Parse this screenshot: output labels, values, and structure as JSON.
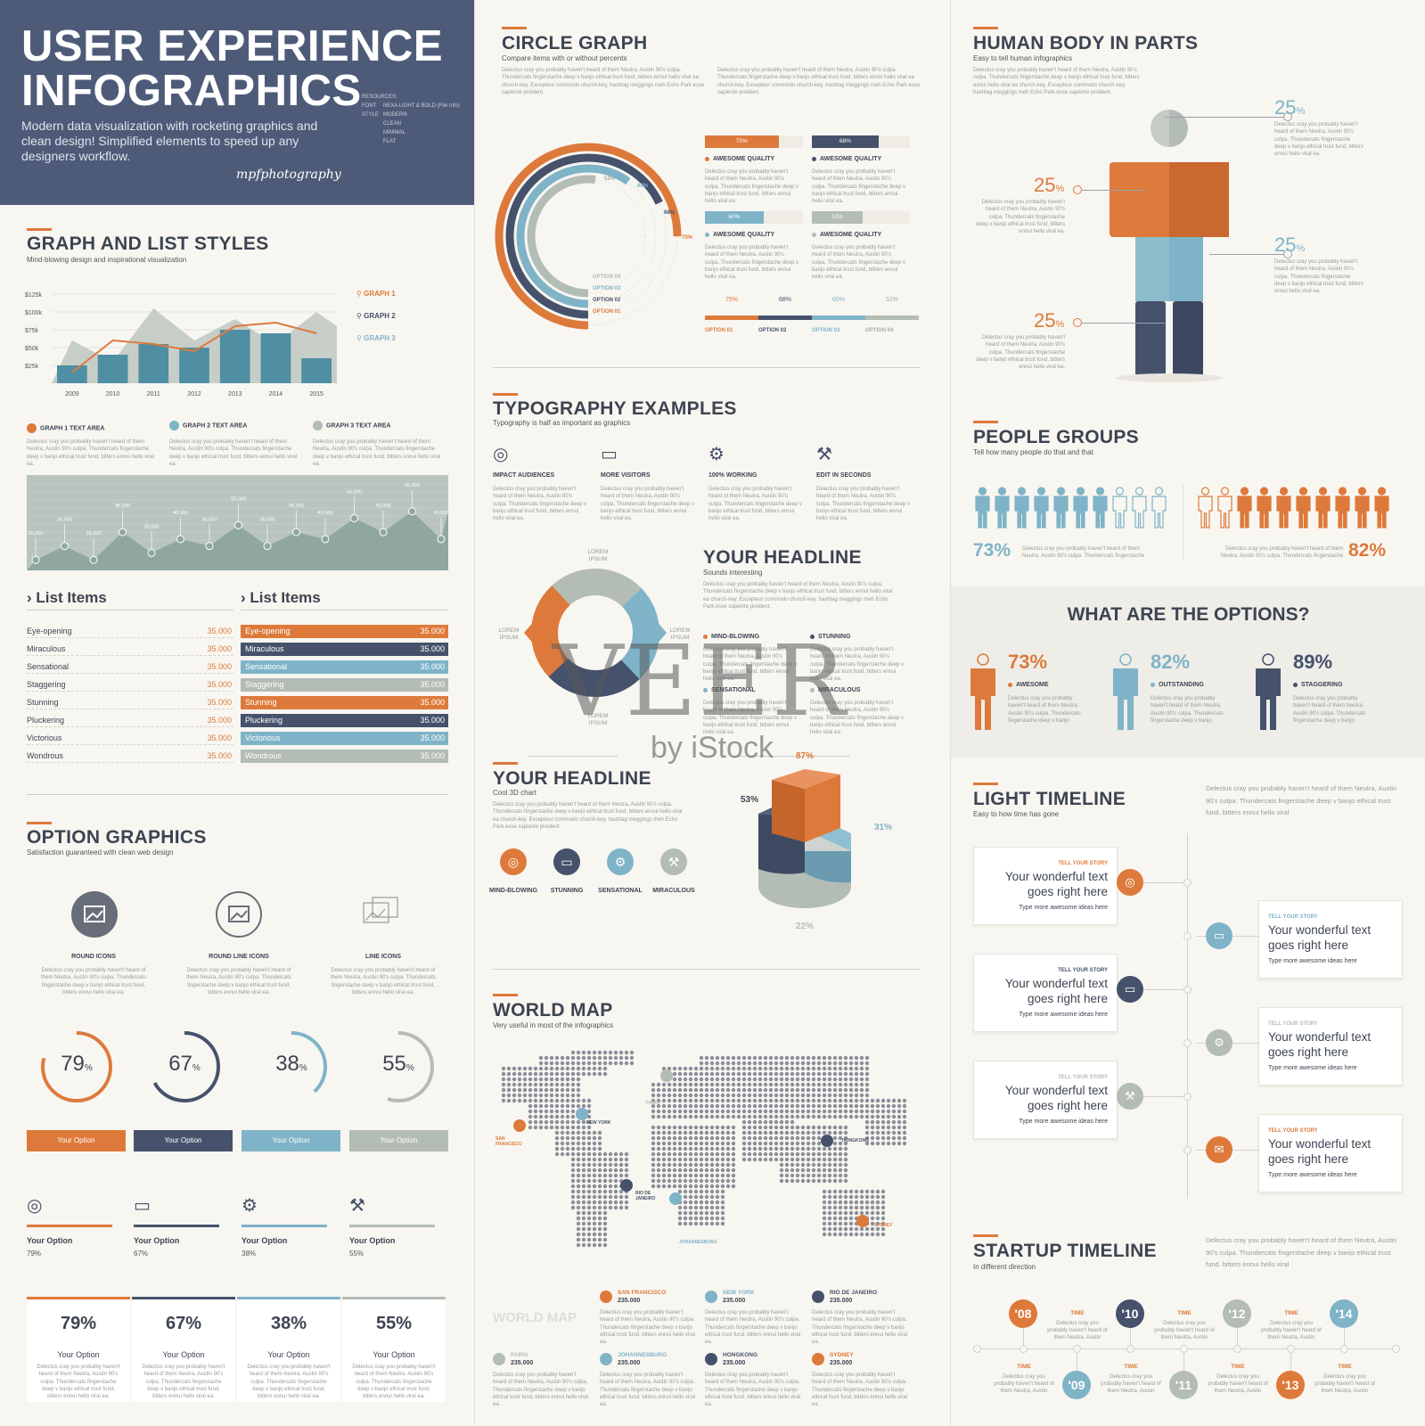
{
  "header": {
    "title_line1": "USER EXPERIENCE",
    "title_line2": "INFOGRAPHICS",
    "description": "Modern data visualization with rocketing graphics and clean design! Simplified elements to speed up any designers workflow.",
    "signature": "mpfphotography",
    "resources_label": "RESOURCES:",
    "resources": [
      "NEXA LIGHT & BOLD (File Info)",
      "MODERN",
      "CLEAN",
      "MINIMAL",
      "FLAT"
    ],
    "resource_keys": [
      "FONT",
      "STYLE"
    ]
  },
  "lorem": "Delectus cray you probably haven't heard of them Neutra, Austin 90's culpa. Thundercats fingerstache deep v banjo ethical trust fund, bitters ennui hello viral ea.",
  "lorem_long": "Delectus cray you probably haven't heard of them Neutra, Austin 90's culpa. Thundercats fingerstache deep v banjo ethical trust fund, bitters ennui hello viral ea church-key. Excepteur commodo church-key, hashtag meggings meh Echo Park esse sapiente proident.",
  "graph_section": {
    "title": "GRAPH AND LIST STYLES",
    "subtitle": "Mind-blowing design and inspirational visualization",
    "legend": [
      "GRAPH 1",
      "GRAPH 2",
      "GRAPH 3"
    ],
    "text_areas": [
      "GRAPH 1 TEXT AREA",
      "GRAPH 2 TEXT AREA",
      "GRAPH 3 TEXT AREA"
    ]
  },
  "chart_data": [
    {
      "type": "bar",
      "categories": [
        "2009",
        "2010",
        "2011",
        "2012",
        "2013",
        "2014",
        "2015"
      ],
      "y_ticks": [
        "$125k",
        "$100k",
        "$75k",
        "$50k",
        "$25k"
      ],
      "ylim": [
        0,
        125
      ],
      "series": [
        {
          "name": "GRAPH 3",
          "values": [
            25,
            40,
            55,
            50,
            75,
            70,
            35
          ]
        },
        {
          "name": "GRAPH 1",
          "values": [
            15,
            60,
            55,
            45,
            80,
            85,
            70
          ]
        },
        {
          "name": "GRAPH 2",
          "values": [
            60,
            30,
            105,
            60,
            90,
            55,
            100
          ]
        }
      ]
    },
    {
      "type": "line",
      "values": [
        25000,
        35000,
        25000,
        45000,
        30000,
        40000,
        35000,
        50000,
        35000,
        45000,
        40000,
        55000,
        45000,
        60000,
        40000
      ],
      "labels": [
        "25,000",
        "35,000",
        "25,000",
        "45,000",
        "30,000",
        "40,000",
        "35,000",
        "50,000",
        "35,000",
        "45,000",
        "40,000",
        "55,000",
        "45,000",
        "60,000",
        "40,000"
      ]
    },
    {
      "type": "pie",
      "labels": [
        "53%",
        "31%",
        "22%",
        "87%"
      ]
    }
  ],
  "lists": {
    "heading": "List Items",
    "items": [
      {
        "label": "Eye-opening",
        "value": "35.000"
      },
      {
        "label": "Miraculous",
        "value": "35.000"
      },
      {
        "label": "Sensational",
        "value": "35.000"
      },
      {
        "label": "Staggering",
        "value": "35.000"
      },
      {
        "label": "Stunning",
        "value": "35.000"
      },
      {
        "label": "Pluckering",
        "value": "35.000"
      },
      {
        "label": "Victorious",
        "value": "35.000"
      },
      {
        "label": "Wondrous",
        "value": "35.000"
      }
    ]
  },
  "option_graphics": {
    "title": "OPTION GRAPHICS",
    "subtitle": "Satisfaction guaranteed with clean web design",
    "icon_types": [
      "ROUND ICONS",
      "ROUND LINE ICONS",
      "LINE ICONS"
    ],
    "rings": [
      79,
      67,
      38,
      55
    ],
    "ring_suffix": "%",
    "button_label": "Your Option",
    "option_values": [
      "79%",
      "67%",
      "38%",
      "55%"
    ]
  },
  "circle_graph": {
    "title": "CIRCLE GRAPH",
    "subtitle": "Compare items with or without percents",
    "ring_labels": [
      "75%",
      "68%",
      "60%",
      "52%"
    ],
    "options": [
      "OPTION 04",
      "OPTION 03",
      "OPTION 02",
      "OPTION 01"
    ],
    "quality_label": "AWESOME QUALITY",
    "bars": [
      {
        "label": "75%",
        "value": 75
      },
      {
        "label": "68%",
        "value": 68
      },
      {
        "label": "60%",
        "value": 60
      },
      {
        "label": "52%",
        "value": 52
      }
    ],
    "bottom_options": [
      "OPTION 01",
      "OPTION 02",
      "OPTION 03",
      "OPTION 04"
    ]
  },
  "typography": {
    "title": "TYPOGRAPHY EXAMPLES",
    "subtitle": "Typography is half as important as graphics",
    "items": [
      "IMPACT AUDIENCES",
      "MORE VISITORS",
      "100% WORKING",
      "EDIT IN SECONDS"
    ]
  },
  "headline1": {
    "title": "YOUR HEADLINE",
    "subtitle": "Sounds interesting",
    "lorem_ipsum": "LOREM IPSUM",
    "bullets": [
      "MIND-BLOWING",
      "STUNNING",
      "SENSATIONAL",
      "MIRACULOUS"
    ]
  },
  "headline2": {
    "title": "YOUR HEADLINE",
    "subtitle": "Cool 3D chart",
    "icons": [
      "MIND-BLOWING",
      "STUNNING",
      "SENSATIONAL",
      "MIRACULOUS"
    ]
  },
  "world_map": {
    "title": "WORLD MAP",
    "subtitle": "Very useful in most of the infographics",
    "watermark": "WORLD MAP",
    "map_cities": [
      "NEW YORK",
      "SAN FRANCISCO",
      "PARIS",
      "HONGKONG",
      "RIO DE JANEIRO",
      "JOHANNESBURG",
      "SYDNEY"
    ],
    "cities": [
      {
        "name": "SAN FRANCISCO",
        "value": "235.000"
      },
      {
        "name": "NEW YORK",
        "value": "235.000"
      },
      {
        "name": "RIO DE JANEIRO",
        "value": "235.000"
      },
      {
        "name": "PARIS",
        "value": "235.000"
      },
      {
        "name": "JOHANNESBURG",
        "value": "235.000"
      },
      {
        "name": "HONGKONG",
        "value": "235.000"
      },
      {
        "name": "SYDNEY",
        "value": "235.000"
      }
    ]
  },
  "human_body": {
    "title": "HUMAN BODY IN PARTS",
    "subtitle": "Easy to tell human infographics",
    "value": "25",
    "suffix": "%"
  },
  "people_groups": {
    "title": "PEOPLE GROUPS",
    "subtitle": "Tell how many people do that and that",
    "left_pct": "73%",
    "right_pct": "82%",
    "left_text": "Delectus cray you probably haven't heard of them Neutra, Austin 90's culpa. Thundercats fingerstache",
    "right_text": "Delectus cray you probably haven't heard of them Neutra, Austin 90's culpa. Thundercats fingerstache"
  },
  "options": {
    "title": "WHAT ARE THE OPTIONS?",
    "items": [
      {
        "pct": "73%",
        "label": "AWESOME"
      },
      {
        "pct": "82%",
        "label": "OUTSTANDING"
      },
      {
        "pct": "89%",
        "label": "STAGGERING"
      }
    ],
    "text": "Delectus cray you probably haven't heard of them Neutra, Austin 90's culpa. Thundercats fingerstache deep v banjo"
  },
  "light_timeline": {
    "title": "LIGHT TIMELINE",
    "subtitle": "Easy to how time has gone",
    "intro": "Delectus cray you probably haven't heard of them Neutra, Austin 90's culpa. Thundercats fingerstache deep v banjo ethical trust fund, bitters ennui hello viral",
    "card_kicker": "TELL YOUR STORY",
    "card_big": "Your wonderful text goes right here",
    "card_small": "Type more awesome ideas here"
  },
  "startup_timeline": {
    "title": "STARTUP TIMELINE",
    "subtitle": "In different direction",
    "intro": "Delectus cray you probably haven't heard of them Neutra, Austin 90's culpa. Thundercats fingerstache deep v banjo ethical trust fund, bitters ennui hello viral",
    "years": [
      "'08",
      "'09",
      "'10",
      "'11",
      "'12",
      "'13",
      "'14"
    ],
    "time_label": "TIME",
    "time_text": "Delectus cray you probably haven't heard of them Neutra, Austin"
  },
  "watermark": {
    "brand": "VEER",
    "by": "by iStock"
  },
  "colors": {
    "orange": "#dd7a3b",
    "navy": "#46526b",
    "blue": "#7fb3c8",
    "grey": "#b3bcb5",
    "header": "#4e5b78"
  }
}
